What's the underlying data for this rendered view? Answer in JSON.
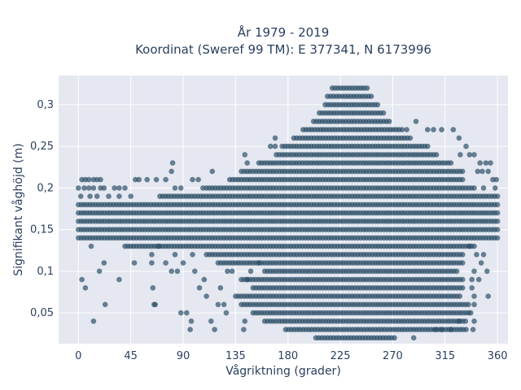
{
  "chart_data": {
    "type": "scatter",
    "title_line1": "År 1979 - 2019",
    "title_line2": "Koordinat (Sweref 99 TM): E 377341, N 6173996",
    "xlabel": "Vågriktning (grader)",
    "ylabel": "Signifikant våghöjd (m)",
    "xlim": [
      -17,
      369
    ],
    "ylim": [
      0.013,
      0.335
    ],
    "x_ticks": [
      0,
      45,
      90,
      135,
      180,
      225,
      270,
      315,
      360
    ],
    "x_tick_labels": [
      "0",
      "45",
      "90",
      "135",
      "180",
      "225",
      "270",
      "315",
      "360"
    ],
    "y_ticks": [
      0.05,
      0.1,
      0.15,
      0.2,
      0.25,
      0.3
    ],
    "y_tick_labels": [
      "0,05",
      "0,1",
      "0,15",
      "0,2",
      "0,25",
      "0,3"
    ],
    "grid": true,
    "marker_color": "#2d5068",
    "plot_background": "#e5e8f0",
    "dense_bands": [
      {
        "y": 0.02,
        "x": [
          204,
          272
        ]
      },
      {
        "y": 0.03,
        "x": [
          178,
          334
        ]
      },
      {
        "y": 0.04,
        "x": [
          160,
          334
        ]
      },
      {
        "y": 0.05,
        "x": [
          150,
          336
        ]
      },
      {
        "y": 0.06,
        "x": [
          140,
          336
        ]
      },
      {
        "y": 0.07,
        "x": [
          135,
          328
        ]
      },
      {
        "y": 0.08,
        "x": [
          150,
          330
        ]
      },
      {
        "y": 0.09,
        "x": [
          140,
          330
        ]
      },
      {
        "y": 0.1,
        "x": [
          160,
          326
        ]
      },
      {
        "y": 0.11,
        "x": [
          120,
          330
        ]
      },
      {
        "y": 0.12,
        "x": [
          110,
          330
        ]
      },
      {
        "y": 0.13,
        "x": [
          40,
          340
        ]
      },
      {
        "y": 0.14,
        "x": [
          0,
          360
        ]
      },
      {
        "y": 0.15,
        "x": [
          0,
          360
        ]
      },
      {
        "y": 0.16,
        "x": [
          0,
          360
        ]
      },
      {
        "y": 0.17,
        "x": [
          0,
          360
        ]
      },
      {
        "y": 0.18,
        "x": [
          0,
          360
        ]
      },
      {
        "y": 0.19,
        "x": [
          70,
          360
        ]
      },
      {
        "y": 0.2,
        "x": [
          110,
          340
        ]
      },
      {
        "y": 0.21,
        "x": [
          130,
          330
        ]
      },
      {
        "y": 0.22,
        "x": [
          140,
          330
        ]
      },
      {
        "y": 0.23,
        "x": [
          155,
          320
        ]
      },
      {
        "y": 0.24,
        "x": [
          170,
          308
        ]
      },
      {
        "y": 0.25,
        "x": [
          175,
          300
        ]
      },
      {
        "y": 0.26,
        "x": [
          185,
          285
        ]
      },
      {
        "y": 0.27,
        "x": [
          193,
          278
        ]
      },
      {
        "y": 0.28,
        "x": [
          202,
          268
        ]
      },
      {
        "y": 0.29,
        "x": [
          207,
          263
        ]
      },
      {
        "y": 0.3,
        "x": [
          212,
          258
        ]
      },
      {
        "y": 0.31,
        "x": [
          214,
          253
        ]
      },
      {
        "y": 0.32,
        "x": [
          218,
          248
        ]
      }
    ],
    "outliers": [
      [
        3,
        0.09
      ],
      [
        6,
        0.08
      ],
      [
        13,
        0.04
      ],
      [
        18,
        0.1
      ],
      [
        23,
        0.06
      ],
      [
        11,
        0.13
      ],
      [
        22,
        0.11
      ],
      [
        35,
        0.09
      ],
      [
        48,
        0.11
      ],
      [
        63,
        0.12
      ],
      [
        63,
        0.11
      ],
      [
        65,
        0.06
      ],
      [
        66,
        0.06
      ],
      [
        64,
        0.08
      ],
      [
        69,
        0.13
      ],
      [
        75,
        0.11
      ],
      [
        80,
        0.1
      ],
      [
        83,
        0.12
      ],
      [
        85,
        0.1
      ],
      [
        88,
        0.05
      ],
      [
        93,
        0.05
      ],
      [
        90,
        0.11
      ],
      [
        97,
        0.04
      ],
      [
        96,
        0.03
      ],
      [
        98,
        0.12
      ],
      [
        100,
        0.1
      ],
      [
        104,
        0.08
      ],
      [
        108,
        0.09
      ],
      [
        110,
        0.07
      ],
      [
        117,
        0.03
      ],
      [
        114,
        0.04
      ],
      [
        120,
        0.06
      ],
      [
        122,
        0.08
      ],
      [
        125,
        0.06
      ],
      [
        127,
        0.05
      ],
      [
        128,
        0.1
      ],
      [
        132,
        0.1
      ],
      [
        142,
        0.03
      ],
      [
        143,
        0.04
      ],
      [
        145,
        0.09
      ],
      [
        148,
        0.1
      ],
      [
        155,
        0.11
      ],
      [
        3,
        0.21
      ],
      [
        6,
        0.21
      ],
      [
        9,
        0.21
      ],
      [
        13,
        0.21
      ],
      [
        16,
        0.21
      ],
      [
        19,
        0.21
      ],
      [
        5,
        0.2
      ],
      [
        9,
        0.2
      ],
      [
        13,
        0.2
      ],
      [
        19,
        0.2
      ],
      [
        22,
        0.2
      ],
      [
        31,
        0.2
      ],
      [
        35,
        0.2
      ],
      [
        40,
        0.2
      ],
      [
        0,
        0.2
      ],
      [
        2,
        0.19
      ],
      [
        10,
        0.19
      ],
      [
        16,
        0.19
      ],
      [
        26,
        0.19
      ],
      [
        35,
        0.19
      ],
      [
        45,
        0.19
      ],
      [
        49,
        0.21
      ],
      [
        52,
        0.21
      ],
      [
        59,
        0.21
      ],
      [
        67,
        0.21
      ],
      [
        75,
        0.21
      ],
      [
        83,
        0.2
      ],
      [
        88,
        0.2
      ],
      [
        80,
        0.22
      ],
      [
        81,
        0.23
      ],
      [
        98,
        0.21
      ],
      [
        103,
        0.21
      ],
      [
        107,
        0.2
      ],
      [
        115,
        0.22
      ],
      [
        143,
        0.24
      ],
      [
        145,
        0.23
      ],
      [
        165,
        0.25
      ],
      [
        169,
        0.25
      ],
      [
        169,
        0.26
      ],
      [
        282,
        0.27
      ],
      [
        290,
        0.28
      ],
      [
        300,
        0.27
      ],
      [
        305,
        0.27
      ],
      [
        312,
        0.27
      ],
      [
        322,
        0.27
      ],
      [
        327,
        0.26
      ],
      [
        333,
        0.25
      ],
      [
        328,
        0.24
      ],
      [
        336,
        0.24
      ],
      [
        340,
        0.24
      ],
      [
        345,
        0.23
      ],
      [
        350,
        0.23
      ],
      [
        354,
        0.23
      ],
      [
        343,
        0.22
      ],
      [
        347,
        0.22
      ],
      [
        352,
        0.22
      ],
      [
        356,
        0.21
      ],
      [
        359,
        0.21
      ],
      [
        348,
        0.2
      ],
      [
        358,
        0.2
      ],
      [
        336,
        0.13
      ],
      [
        342,
        0.12
      ],
      [
        348,
        0.12
      ],
      [
        346,
        0.11
      ],
      [
        351,
        0.1
      ],
      [
        340,
        0.1
      ],
      [
        338,
        0.09
      ],
      [
        344,
        0.09
      ],
      [
        338,
        0.08
      ],
      [
        340,
        0.07
      ],
      [
        352,
        0.07
      ],
      [
        337,
        0.05
      ],
      [
        340,
        0.04
      ],
      [
        339,
        0.03
      ],
      [
        327,
        0.04
      ],
      [
        320,
        0.03
      ],
      [
        312,
        0.03
      ],
      [
        307,
        0.03
      ],
      [
        288,
        0.02
      ],
      [
        340,
        0.06
      ]
    ]
  }
}
